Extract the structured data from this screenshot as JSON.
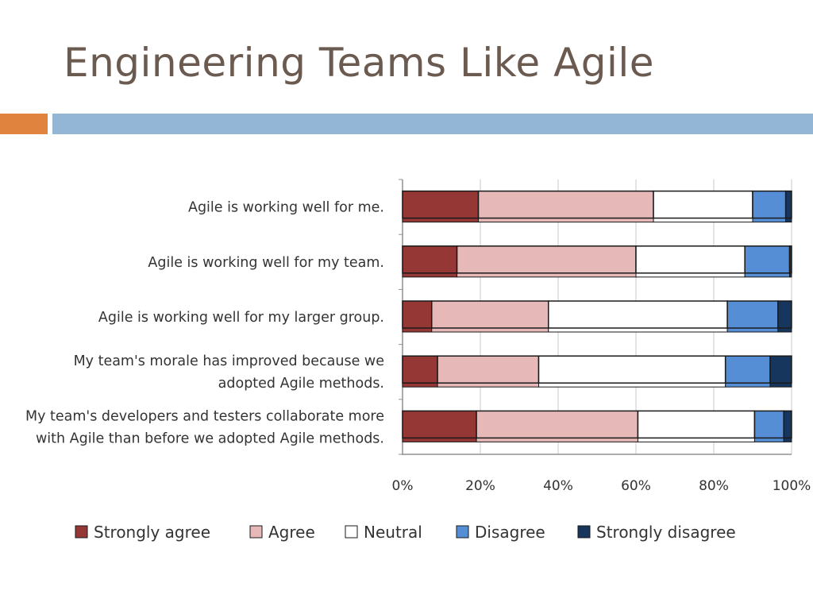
{
  "slide": {
    "title": "Engineering Teams Like Agile",
    "accent_colors": [
      "#e0833f",
      "#93b6d6"
    ]
  },
  "chart_data": {
    "type": "bar",
    "orientation": "horizontal",
    "stacked": "percent",
    "categories": [
      [
        "Agile is working well for me."
      ],
      [
        "Agile is working well for my team."
      ],
      [
        "Agile is working well for my larger group."
      ],
      [
        "My team's morale has improved because we",
        "adopted Agile methods."
      ],
      [
        "My team's developers and testers collaborate more",
        "with Agile than before we adopted Agile methods."
      ]
    ],
    "series": [
      {
        "name": "Strongly agree",
        "color": "#953735",
        "values": [
          19.5,
          14,
          7.5,
          9,
          19
        ]
      },
      {
        "name": "Agree",
        "color": "#e6b9b8",
        "values": [
          45,
          46,
          30,
          26,
          41.5
        ]
      },
      {
        "name": "Neutral",
        "color": "#ffffff",
        "values": [
          25.5,
          28,
          46,
          48,
          30
        ]
      },
      {
        "name": "Disagree",
        "color": "#558ed5",
        "values": [
          8.5,
          11.5,
          13,
          11.5,
          7.5
        ]
      },
      {
        "name": "Strongly disagree",
        "color": "#17365d",
        "values": [
          1.5,
          0.5,
          3.5,
          5.5,
          2
        ]
      }
    ],
    "xaxis": {
      "min": 0,
      "max": 100,
      "ticks": [
        0,
        20,
        40,
        60,
        80,
        100
      ],
      "tick_labels": [
        "0%",
        "20%",
        "40%",
        "60%",
        "80%",
        "100%"
      ]
    },
    "grid": true,
    "legend": "bottom"
  }
}
